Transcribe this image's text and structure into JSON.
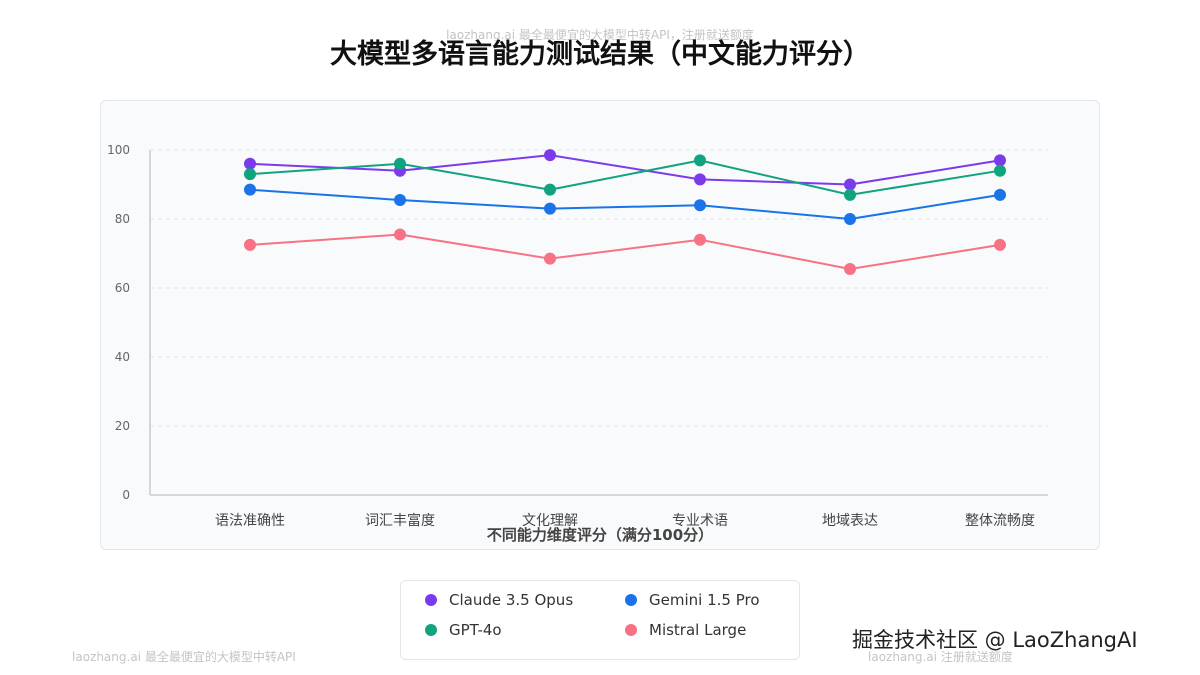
{
  "watermarks": {
    "top": "laozhang.ai 最全最便宜的大模型中转API，注册就送额度",
    "bottom_left": "laozhang.ai 最全最便宜的大模型中转API",
    "bottom_right": "laozhang.ai 注册就送额度"
  },
  "brand": "掘金技术社区 @ LaoZhangAI",
  "chart_data": {
    "type": "line",
    "title": "大模型多语言能力测试结果（中文能力评分）",
    "xlabel": "不同能力维度评分（满分100分）",
    "ylabel": "",
    "categories": [
      "语法准确性",
      "词汇丰富度",
      "文化理解",
      "专业术语",
      "地域表达",
      "整体流畅度"
    ],
    "ylim": [
      0,
      100
    ],
    "yticks": [
      "0",
      "20",
      "40",
      "60",
      "80",
      "100"
    ],
    "grid": true,
    "legend_position": "bottom",
    "series": [
      {
        "name": "Claude 3.5 Opus",
        "color": "#7c3aed",
        "values": [
          96,
          94,
          98.5,
          91.5,
          90,
          97
        ]
      },
      {
        "name": "GPT-4o",
        "color": "#10a37f",
        "values": [
          93,
          96,
          88.5,
          97,
          87,
          94
        ]
      },
      {
        "name": "Gemini 1.5 Pro",
        "color": "#1a73e8",
        "values": [
          88.5,
          85.5,
          83,
          84,
          80,
          87
        ]
      },
      {
        "name": "Mistral Large",
        "color": "#f87185",
        "values": [
          72.5,
          75.5,
          68.5,
          74,
          65.5,
          72.5
        ]
      }
    ]
  }
}
